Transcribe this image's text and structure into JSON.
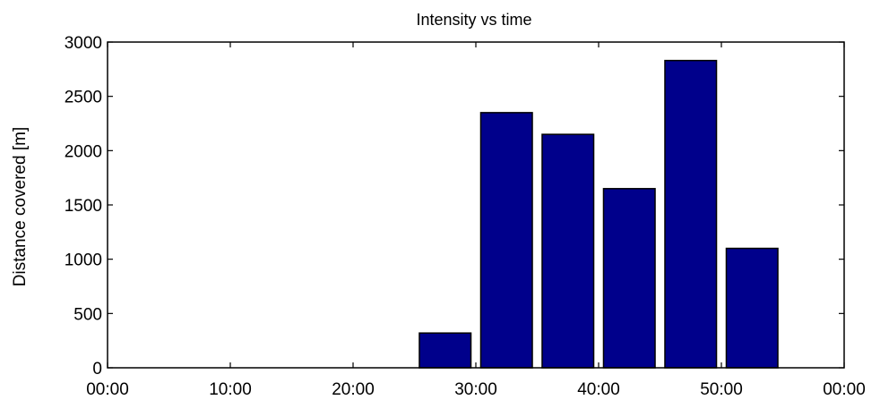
{
  "chart_data": {
    "type": "bar",
    "title": "Intensity vs time",
    "xlabel": "",
    "ylabel": "Distance covered [m]",
    "x_tick_labels": [
      "00:00",
      "10:00",
      "20:00",
      "30:00",
      "40:00",
      "50:00",
      "00:00"
    ],
    "x_ticks_minutes": [
      0,
      10,
      20,
      30,
      40,
      50,
      60
    ],
    "xlim_minutes": [
      0,
      60
    ],
    "y_ticks": [
      0,
      500,
      1000,
      1500,
      2000,
      2500,
      3000
    ],
    "ylim": [
      0,
      3000
    ],
    "bar_width_minutes": 4.2,
    "bars": [
      {
        "x_minutes": 27.5,
        "value": 320
      },
      {
        "x_minutes": 32.5,
        "value": 2350
      },
      {
        "x_minutes": 37.5,
        "value": 2150
      },
      {
        "x_minutes": 42.5,
        "value": 1650
      },
      {
        "x_minutes": 47.5,
        "value": 2830
      },
      {
        "x_minutes": 52.5,
        "value": 1100
      }
    ],
    "bar_color": "#00008b",
    "grid": false,
    "legend": "none"
  }
}
